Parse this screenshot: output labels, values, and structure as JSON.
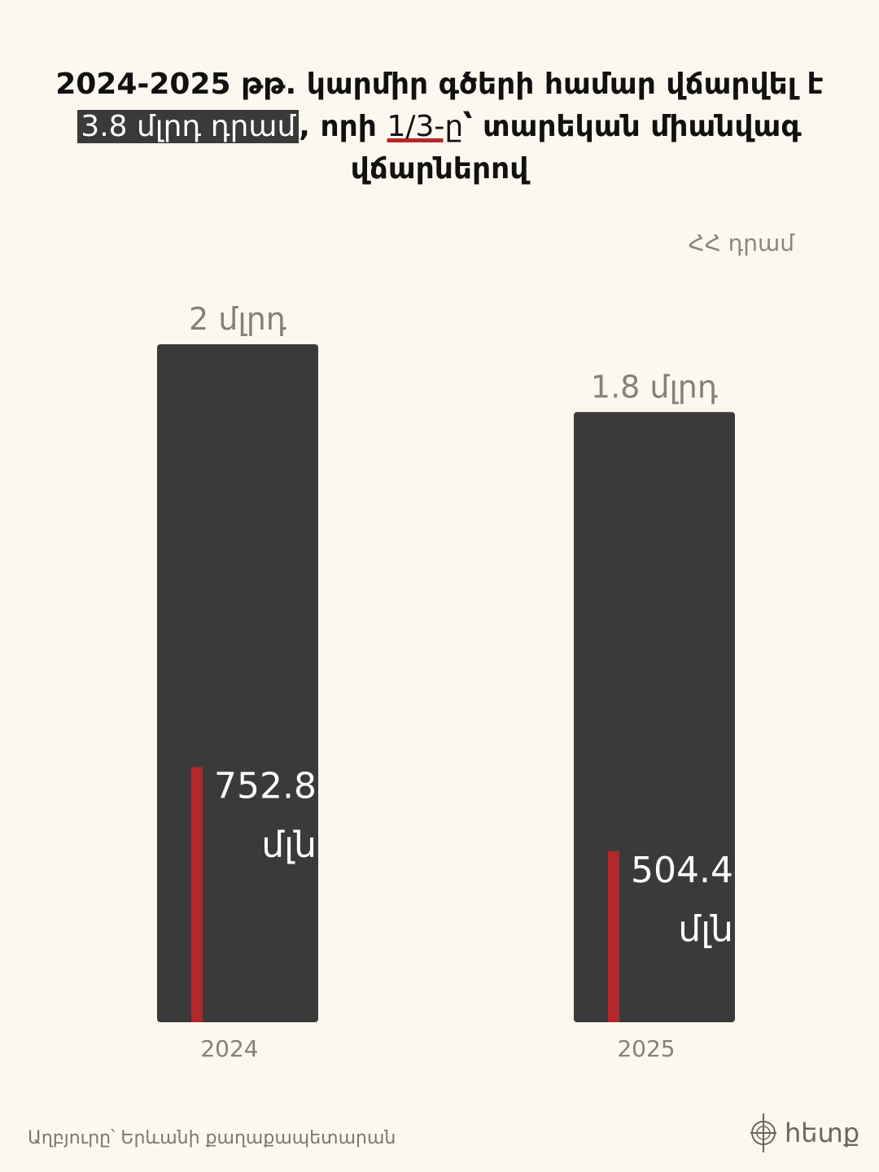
{
  "title": {
    "part1": "2024-2025 թթ. կարմիր գծերի համար վճարվել է ",
    "highlight": "3.8 մլրդ դրամ",
    "part2": ", որի ",
    "fraction": "1/3-ը",
    "part3": "՝ տարեկան միանվագ վճարներով"
  },
  "unit_label": "ՀՀ դրամ",
  "source": "Աղբյուրը՝ Երևանի քաղաքապետարան",
  "logo": "հետք",
  "colors": {
    "bar": "#3a3a3a",
    "highlight": "#b5282a",
    "background": "#fdf8ef"
  },
  "chart_data": {
    "type": "bar",
    "categories": [
      "2024",
      "2025"
    ],
    "series": [
      {
        "values": [
          2.0,
          1.8
        ],
        "labels": [
          "2 մլրդ",
          "1.8 մլրդ"
        ]
      },
      {
        "values": [
          0.7528,
          0.5044
        ],
        "labels": [
          "752.8 մլն",
          "504.4 մլն"
        ]
      }
    ],
    "ylabel": "ՀՀ դրամ",
    "grid": false
  }
}
